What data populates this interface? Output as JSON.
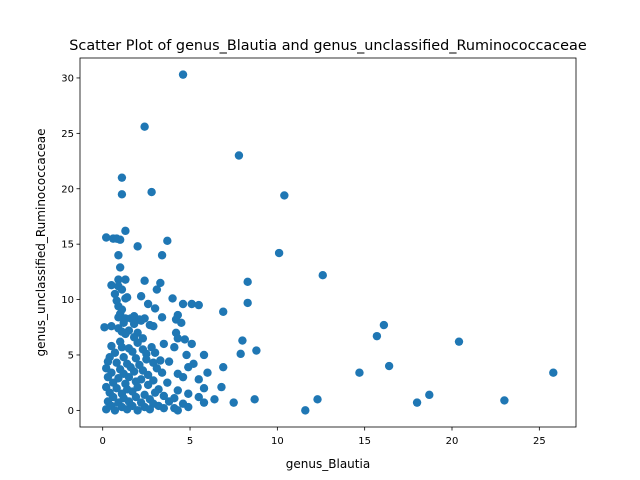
{
  "chart_data": {
    "type": "scatter",
    "title": "Scatter Plot of genus_Blautia and genus_unclassified_Ruminococcaceae",
    "xlabel": "genus_Blautia",
    "ylabel": "genus_unclassified_Ruminococcaceae",
    "xlim": [
      -1.3,
      27.1
    ],
    "ylim": [
      -1.5,
      31.8
    ],
    "xticks": [
      0,
      5,
      10,
      15,
      20,
      25
    ],
    "yticks": [
      0,
      5,
      10,
      15,
      20,
      25,
      30
    ],
    "grid": false,
    "legend": "none",
    "marker_color": "#1f77b4",
    "points": [
      [
        4.6,
        30.3
      ],
      [
        2.4,
        25.6
      ],
      [
        7.8,
        23.0
      ],
      [
        1.1,
        21.0
      ],
      [
        1.1,
        19.5
      ],
      [
        2.8,
        19.7
      ],
      [
        10.4,
        19.4
      ],
      [
        1.3,
        16.2
      ],
      [
        0.2,
        15.6
      ],
      [
        0.6,
        15.5
      ],
      [
        1.0,
        15.4
      ],
      [
        2.0,
        14.8
      ],
      [
        3.7,
        15.3
      ],
      [
        0.8,
        15.5
      ],
      [
        10.1,
        14.2
      ],
      [
        3.4,
        14.0
      ],
      [
        0.9,
        14.0
      ],
      [
        1.0,
        12.9
      ],
      [
        12.6,
        12.2
      ],
      [
        0.9,
        11.8
      ],
      [
        1.3,
        11.8
      ],
      [
        2.4,
        11.7
      ],
      [
        3.3,
        11.5
      ],
      [
        8.3,
        11.6
      ],
      [
        0.5,
        11.3
      ],
      [
        0.9,
        11.2
      ],
      [
        1.1,
        10.9
      ],
      [
        0.7,
        10.5
      ],
      [
        3.1,
        10.9
      ],
      [
        1.4,
        10.2
      ],
      [
        2.2,
        10.3
      ],
      [
        4.0,
        10.1
      ],
      [
        1.3,
        10.1
      ],
      [
        0.8,
        9.9
      ],
      [
        5.1,
        9.6
      ],
      [
        5.5,
        9.5
      ],
      [
        8.3,
        9.7
      ],
      [
        4.6,
        9.6
      ],
      [
        2.6,
        9.6
      ],
      [
        0.9,
        9.4
      ],
      [
        1.1,
        9.1
      ],
      [
        3.0,
        9.2
      ],
      [
        6.9,
        8.9
      ],
      [
        1.0,
        8.7
      ],
      [
        4.3,
        8.6
      ],
      [
        0.9,
        8.4
      ],
      [
        1.3,
        8.3
      ],
      [
        1.6,
        8.3
      ],
      [
        1.8,
        8.5
      ],
      [
        2.1,
        8.2
      ],
      [
        2.4,
        8.3
      ],
      [
        3.4,
        8.4
      ],
      [
        4.2,
        8.2
      ],
      [
        4.5,
        7.9
      ],
      [
        1.2,
        7.9
      ],
      [
        1.8,
        7.8
      ],
      [
        2.2,
        8.1
      ],
      [
        2.7,
        7.7
      ],
      [
        2.9,
        7.6
      ],
      [
        16.1,
        7.7
      ],
      [
        0.1,
        7.5
      ],
      [
        0.5,
        7.6
      ],
      [
        0.9,
        7.4
      ],
      [
        1.1,
        7.1
      ],
      [
        1.5,
        7.2
      ],
      [
        2.0,
        7.0
      ],
      [
        4.2,
        7.0
      ],
      [
        1.3,
        6.9
      ],
      [
        15.7,
        6.7
      ],
      [
        1.8,
        6.6
      ],
      [
        2.3,
        6.5
      ],
      [
        4.3,
        6.5
      ],
      [
        4.7,
        6.4
      ],
      [
        8.0,
        6.3
      ],
      [
        20.4,
        6.2
      ],
      [
        1.0,
        6.2
      ],
      [
        2.0,
        6.1
      ],
      [
        3.5,
        6.0
      ],
      [
        5.1,
        6.0
      ],
      [
        0.5,
        5.8
      ],
      [
        1.1,
        5.7
      ],
      [
        1.5,
        5.6
      ],
      [
        2.3,
        5.5
      ],
      [
        2.8,
        5.7
      ],
      [
        4.1,
        5.7
      ],
      [
        8.8,
        5.4
      ],
      [
        0.7,
        5.2
      ],
      [
        1.7,
        5.3
      ],
      [
        2.5,
        5.1
      ],
      [
        3.0,
        5.2
      ],
      [
        4.8,
        5.0
      ],
      [
        5.8,
        5.0
      ],
      [
        7.9,
        5.1
      ],
      [
        0.4,
        4.8
      ],
      [
        1.2,
        4.8
      ],
      [
        1.9,
        4.7
      ],
      [
        2.5,
        4.6
      ],
      [
        3.3,
        4.5
      ],
      [
        0.3,
        4.4
      ],
      [
        0.8,
        4.3
      ],
      [
        1.4,
        4.2
      ],
      [
        2.1,
        4.1
      ],
      [
        2.9,
        4.3
      ],
      [
        3.8,
        4.4
      ],
      [
        5.2,
        4.2
      ],
      [
        16.4,
        4.0
      ],
      [
        0.2,
        3.8
      ],
      [
        1.0,
        3.7
      ],
      [
        1.6,
        3.9
      ],
      [
        2.3,
        3.6
      ],
      [
        3.1,
        3.8
      ],
      [
        4.9,
        3.9
      ],
      [
        6.9,
        3.9
      ],
      [
        0.5,
        3.4
      ],
      [
        1.2,
        3.3
      ],
      [
        1.8,
        3.5
      ],
      [
        2.6,
        3.2
      ],
      [
        3.4,
        3.4
      ],
      [
        4.3,
        3.3
      ],
      [
        6.0,
        3.4
      ],
      [
        14.7,
        3.4
      ],
      [
        25.8,
        3.4
      ],
      [
        0.3,
        3.0
      ],
      [
        0.9,
        2.9
      ],
      [
        1.5,
        3.0
      ],
      [
        2.2,
        2.8
      ],
      [
        2.9,
        2.7
      ],
      [
        4.6,
        3.0
      ],
      [
        5.5,
        2.8
      ],
      [
        0.6,
        2.5
      ],
      [
        1.3,
        2.4
      ],
      [
        1.9,
        2.6
      ],
      [
        2.6,
        2.3
      ],
      [
        3.7,
        2.5
      ],
      [
        6.8,
        2.1
      ],
      [
        0.2,
        2.1
      ],
      [
        0.8,
        2.0
      ],
      [
        1.4,
        1.9
      ],
      [
        2.0,
        2.1
      ],
      [
        3.2,
        1.9
      ],
      [
        4.3,
        1.8
      ],
      [
        5.8,
        2.0
      ],
      [
        0.4,
        1.6
      ],
      [
        1.1,
        1.5
      ],
      [
        1.7,
        1.7
      ],
      [
        2.4,
        1.4
      ],
      [
        3.0,
        1.6
      ],
      [
        4.9,
        1.5
      ],
      [
        18.7,
        1.4
      ],
      [
        0.6,
        1.2
      ],
      [
        1.2,
        1.1
      ],
      [
        1.9,
        1.2
      ],
      [
        2.7,
        1.0
      ],
      [
        3.5,
        1.3
      ],
      [
        4.1,
        1.1
      ],
      [
        5.5,
        1.2
      ],
      [
        6.4,
        1.0
      ],
      [
        8.7,
        1.0
      ],
      [
        12.3,
        1.0
      ],
      [
        23.0,
        0.9
      ],
      [
        0.3,
        0.8
      ],
      [
        0.9,
        0.7
      ],
      [
        1.5,
        0.8
      ],
      [
        2.2,
        0.7
      ],
      [
        2.9,
        0.6
      ],
      [
        3.8,
        0.8
      ],
      [
        4.6,
        0.6
      ],
      [
        5.8,
        0.7
      ],
      [
        7.5,
        0.7
      ],
      [
        18.0,
        0.7
      ],
      [
        0.5,
        0.4
      ],
      [
        1.1,
        0.3
      ],
      [
        1.7,
        0.4
      ],
      [
        2.4,
        0.3
      ],
      [
        3.2,
        0.4
      ],
      [
        4.1,
        0.2
      ],
      [
        4.9,
        0.3
      ],
      [
        0.2,
        0.1
      ],
      [
        0.7,
        0.0
      ],
      [
        1.4,
        0.1
      ],
      [
        2.0,
        0.0
      ],
      [
        2.7,
        0.1
      ],
      [
        3.5,
        0.2
      ],
      [
        4.3,
        0.0
      ],
      [
        11.6,
        0.0
      ]
    ]
  }
}
